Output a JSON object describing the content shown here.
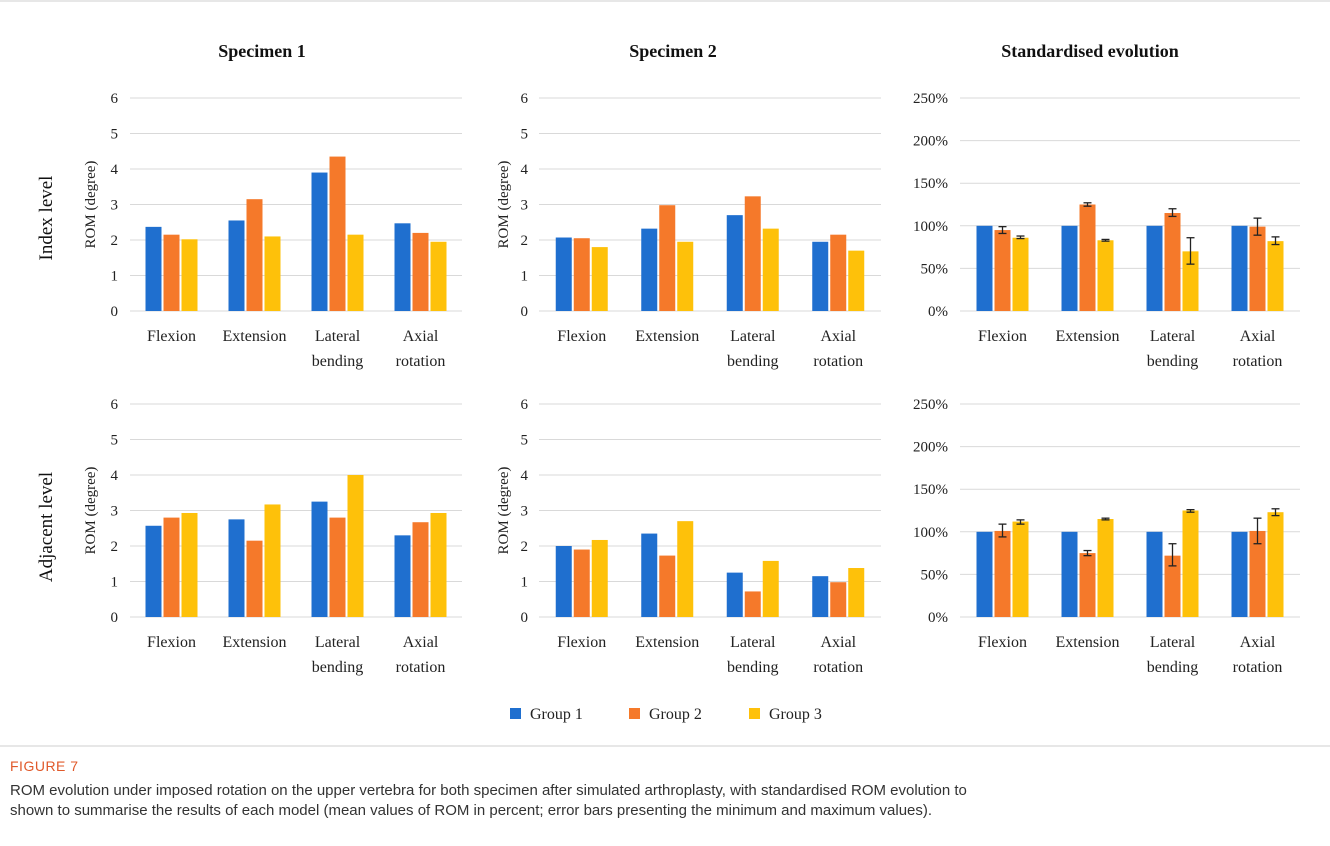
{
  "figure": {
    "label": "FIGURE 7",
    "caption_line1": "ROM evolution under imposed rotation on the upper vertebra for both specimen after simulated arthroplasty, with standardised ROM evolution to",
    "caption_line2": "shown to summarise the results of each model (mean values of ROM in percent; error bars presenting the minimum and maximum values)."
  },
  "column_titles": [
    "Specimen 1",
    "Specimen 2",
    "Standardised evolution"
  ],
  "row_labels": [
    "Index level",
    "Adjacent level"
  ],
  "legend": [
    {
      "label": "Group 1",
      "color": "#1f6fcf"
    },
    {
      "label": "Group 2",
      "color": "#f5792a"
    },
    {
      "label": "Group 3",
      "color": "#fec10a"
    }
  ],
  "chart_data": [
    {
      "type": "bar",
      "title": "Specimen 1",
      "row": "Index level",
      "ylabel": "ROM (degree)",
      "ylim": [
        0,
        6
      ],
      "yticks": [
        "0",
        "1",
        "2",
        "3",
        "4",
        "5",
        "6"
      ],
      "categories": [
        [
          "Flexion"
        ],
        [
          "Extension"
        ],
        [
          "Lateral",
          "bending"
        ],
        [
          "Axial",
          "rotation"
        ]
      ],
      "series": [
        {
          "name": "Group 1",
          "values": [
            2.37,
            2.55,
            3.9,
            2.47
          ]
        },
        {
          "name": "Group 2",
          "values": [
            2.15,
            3.15,
            4.35,
            2.2
          ]
        },
        {
          "name": "Group 3",
          "values": [
            2.02,
            2.1,
            2.15,
            1.95
          ]
        }
      ]
    },
    {
      "type": "bar",
      "title": "Specimen 2",
      "row": "Index level",
      "ylabel": "ROM (degree)",
      "ylim": [
        0,
        6
      ],
      "yticks": [
        "0",
        "1",
        "2",
        "3",
        "4",
        "5",
        "6"
      ],
      "categories": [
        [
          "Flexion"
        ],
        [
          "Extension"
        ],
        [
          "Lateral",
          "bending"
        ],
        [
          "Axial",
          "rotation"
        ]
      ],
      "series": [
        {
          "name": "Group 1",
          "values": [
            2.07,
            2.32,
            2.7,
            1.95
          ]
        },
        {
          "name": "Group 2",
          "values": [
            2.05,
            2.98,
            3.23,
            2.15
          ]
        },
        {
          "name": "Group 3",
          "values": [
            1.8,
            1.95,
            2.32,
            1.7
          ]
        }
      ]
    },
    {
      "type": "bar",
      "title": "Standardised evolution",
      "row": "Index level",
      "ylabel": "",
      "ylim": [
        0,
        250
      ],
      "yticks": [
        "0%",
        "50%",
        "100%",
        "150%",
        "200%",
        "250%"
      ],
      "categories": [
        [
          "Flexion"
        ],
        [
          "Extension"
        ],
        [
          "Lateral",
          "bending"
        ],
        [
          "Axial",
          "rotation"
        ]
      ],
      "series": [
        {
          "name": "Group 1",
          "values": [
            100,
            100,
            100,
            100
          ],
          "err_min": [
            null,
            null,
            null,
            null
          ],
          "err_max": [
            null,
            null,
            null,
            null
          ]
        },
        {
          "name": "Group 2",
          "values": [
            95,
            125,
            115,
            99
          ],
          "err_min": [
            91,
            123,
            111,
            89
          ],
          "err_max": [
            99,
            127,
            120,
            109
          ]
        },
        {
          "name": "Group 3",
          "values": [
            86,
            83,
            70,
            82
          ],
          "err_min": [
            85,
            82,
            55,
            78
          ],
          "err_max": [
            88,
            84,
            86,
            87
          ]
        }
      ]
    },
    {
      "type": "bar",
      "title": "Specimen 1",
      "row": "Adjacent level",
      "ylabel": "ROM (degree)",
      "ylim": [
        0,
        6
      ],
      "yticks": [
        "0",
        "1",
        "2",
        "3",
        "4",
        "5",
        "6"
      ],
      "categories": [
        [
          "Flexion"
        ],
        [
          "Extension"
        ],
        [
          "Lateral",
          "bending"
        ],
        [
          "Axial",
          "rotation"
        ]
      ],
      "series": [
        {
          "name": "Group 1",
          "values": [
            2.57,
            2.75,
            3.25,
            2.3
          ]
        },
        {
          "name": "Group 2",
          "values": [
            2.8,
            2.15,
            2.8,
            2.67
          ]
        },
        {
          "name": "Group 3",
          "values": [
            2.93,
            3.17,
            4.0,
            2.93
          ]
        }
      ]
    },
    {
      "type": "bar",
      "title": "Specimen 2",
      "row": "Adjacent level",
      "ylabel": "ROM (degree)",
      "ylim": [
        0,
        6
      ],
      "yticks": [
        "0",
        "1",
        "2",
        "3",
        "4",
        "5",
        "6"
      ],
      "categories": [
        [
          "Flexion"
        ],
        [
          "Extension"
        ],
        [
          "Lateral",
          "bending"
        ],
        [
          "Axial",
          "rotation"
        ]
      ],
      "series": [
        {
          "name": "Group 1",
          "values": [
            2.0,
            2.35,
            1.25,
            1.15
          ]
        },
        {
          "name": "Group 2",
          "values": [
            1.9,
            1.73,
            0.72,
            0.98
          ]
        },
        {
          "name": "Group 3",
          "values": [
            2.17,
            2.7,
            1.58,
            1.38
          ]
        }
      ]
    },
    {
      "type": "bar",
      "title": "Standardised evolution",
      "row": "Adjacent level",
      "ylabel": "",
      "ylim": [
        0,
        250
      ],
      "yticks": [
        "0%",
        "50%",
        "100%",
        "150%",
        "200%",
        "250%"
      ],
      "categories": [
        [
          "Flexion"
        ],
        [
          "Extension"
        ],
        [
          "Lateral",
          "bending"
        ],
        [
          "Axial",
          "rotation"
        ]
      ],
      "series": [
        {
          "name": "Group 1",
          "values": [
            100,
            100,
            100,
            100
          ],
          "err_min": [
            null,
            null,
            null,
            null
          ],
          "err_max": [
            null,
            null,
            null,
            null
          ]
        },
        {
          "name": "Group 2",
          "values": [
            101,
            75,
            72,
            101
          ],
          "err_min": [
            94,
            72,
            60,
            86
          ],
          "err_max": [
            109,
            78,
            86,
            116
          ]
        },
        {
          "name": "Group 3",
          "values": [
            112,
            115,
            125,
            123
          ],
          "err_min": [
            109,
            114,
            123,
            119
          ],
          "err_max": [
            114,
            116,
            126,
            127
          ]
        }
      ]
    }
  ]
}
